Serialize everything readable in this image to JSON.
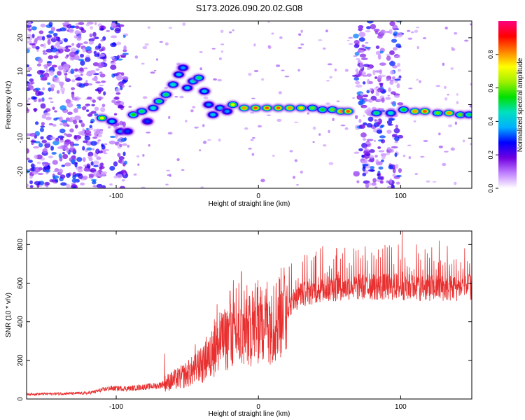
{
  "title": "S173.2026.090.20.02.G08",
  "chart_data": [
    {
      "type": "heatmap",
      "title": "S173.2026.090.20.02.G08",
      "xlabel": "Height of straight line (km)",
      "ylabel": "Frequency (Hz)",
      "xlim": [
        -163,
        150
      ],
      "ylim": [
        -25,
        25
      ],
      "x_ticks": [
        -100,
        0,
        100
      ],
      "y_ticks": [
        -20,
        -10,
        0,
        10,
        20
      ],
      "x_tick_labels": [
        "-100",
        "0",
        "100"
      ],
      "y_tick_labels": [
        "-20",
        "-10",
        "0",
        "10",
        "20"
      ],
      "colorbar": {
        "label": "Normalized spectral amplitude",
        "range": [
          0,
          1
        ],
        "ticks": [
          0,
          0.2,
          0.4,
          0.6,
          0.8
        ],
        "tick_labels": [
          "0.0",
          "0.2",
          "0.4",
          "0.6",
          "0.8"
        ],
        "colors": [
          "#ffffff",
          "#c080ff",
          "#7000e0",
          "#0000ff",
          "#00b0ff",
          "#00e0c0",
          "#00e000",
          "#a0f000",
          "#ffff00",
          "#ff8000",
          "#ff0000",
          "#ff0080"
        ]
      },
      "ridge": [
        {
          "x": -110,
          "y": -4,
          "a": 0.7
        },
        {
          "x": -103,
          "y": -5,
          "a": 0.4
        },
        {
          "x": -97,
          "y": -8,
          "a": 0.35
        },
        {
          "x": -92,
          "y": -8,
          "a": 0.3
        },
        {
          "x": -88,
          "y": -3,
          "a": 0.55
        },
        {
          "x": -82,
          "y": -2,
          "a": 0.5
        },
        {
          "x": -78,
          "y": -5,
          "a": 0.3
        },
        {
          "x": -74,
          "y": -1,
          "a": 0.45
        },
        {
          "x": -70,
          "y": 1,
          "a": 0.5
        },
        {
          "x": -65,
          "y": 3,
          "a": 0.5
        },
        {
          "x": -60,
          "y": 6,
          "a": 0.45
        },
        {
          "x": -56,
          "y": 9,
          "a": 0.4
        },
        {
          "x": -53,
          "y": 11,
          "a": 0.35
        },
        {
          "x": -50,
          "y": 5,
          "a": 0.4
        },
        {
          "x": -46,
          "y": 7,
          "a": 0.45
        },
        {
          "x": -42,
          "y": 8,
          "a": 0.5
        },
        {
          "x": -38,
          "y": 4,
          "a": 0.4
        },
        {
          "x": -35,
          "y": 0,
          "a": 0.35
        },
        {
          "x": -32,
          "y": -3,
          "a": 0.4
        },
        {
          "x": -27,
          "y": -1,
          "a": 0.4
        },
        {
          "x": -22,
          "y": -2,
          "a": 0.35
        },
        {
          "x": -18,
          "y": 0,
          "a": 0.7
        },
        {
          "x": -10,
          "y": -1,
          "a": 0.8
        },
        {
          "x": -2,
          "y": -1,
          "a": 0.85
        },
        {
          "x": 6,
          "y": -1,
          "a": 0.85
        },
        {
          "x": 14,
          "y": -1,
          "a": 0.85
        },
        {
          "x": 22,
          "y": -1,
          "a": 0.8
        },
        {
          "x": 30,
          "y": -1,
          "a": 0.75
        },
        {
          "x": 38,
          "y": -1,
          "a": 0.6
        },
        {
          "x": 45,
          "y": -1.5,
          "a": 0.55
        },
        {
          "x": 52,
          "y": -1.5,
          "a": 0.6
        },
        {
          "x": 58,
          "y": -2,
          "a": 0.8
        },
        {
          "x": 63,
          "y": -2,
          "a": 0.85
        },
        {
          "x": 83,
          "y": -2.5,
          "a": 0.5
        },
        {
          "x": 93,
          "y": -2.5,
          "a": 0.45
        },
        {
          "x": 102,
          "y": -1.5,
          "a": 0.55
        },
        {
          "x": 110,
          "y": -2,
          "a": 0.8
        },
        {
          "x": 117,
          "y": -2,
          "a": 0.85
        },
        {
          "x": 126,
          "y": -2.5,
          "a": 0.6
        },
        {
          "x": 134,
          "y": -2.5,
          "a": 0.8
        },
        {
          "x": 142,
          "y": -3,
          "a": 0.6
        },
        {
          "x": 148,
          "y": -3,
          "a": 0.5
        }
      ],
      "noise_bands": [
        {
          "from": -163,
          "to": -108
        },
        {
          "from": -103,
          "to": -93
        },
        {
          "from": 68,
          "to": 88
        },
        {
          "from": 91,
          "to": 100
        }
      ]
    },
    {
      "type": "line",
      "xlabel": "Height of straight line (km)",
      "ylabel": "SNR (10 * v/v)",
      "xlim": [
        -163,
        150
      ],
      "ylim": [
        0,
        870
      ],
      "x_ticks": [
        -100,
        0,
        100
      ],
      "y_ticks": [
        0,
        200,
        400,
        600,
        800
      ],
      "x_tick_labels": [
        "-100",
        "0",
        "100"
      ],
      "y_tick_labels": [
        "0",
        "200",
        "400",
        "600",
        "800"
      ],
      "series_color": "#e83030",
      "envelope": {
        "x": [
          -163,
          -120,
          -105,
          -90,
          -70,
          -55,
          -40,
          -30,
          -20,
          -10,
          0,
          10,
          20,
          30,
          40,
          60,
          80,
          100,
          120,
          150
        ],
        "y": [
          25,
          30,
          55,
          55,
          70,
          110,
          170,
          260,
          330,
          330,
          380,
          400,
          470,
          540,
          560,
          580,
          580,
          580,
          575,
          575
        ]
      },
      "peaks": [
        {
          "x": -66,
          "y": 235
        },
        {
          "x": -30,
          "y": 400
        },
        {
          "x": -20,
          "y": 560
        },
        {
          "x": -12,
          "y": 660
        },
        {
          "x": 15,
          "y": 620
        },
        {
          "x": 40,
          "y": 740
        },
        {
          "x": 55,
          "y": 780
        },
        {
          "x": 75,
          "y": 790
        },
        {
          "x": 101,
          "y": 870
        },
        {
          "x": 111,
          "y": 800
        },
        {
          "x": 127,
          "y": 820
        },
        {
          "x": 145,
          "y": 780
        }
      ]
    }
  ]
}
